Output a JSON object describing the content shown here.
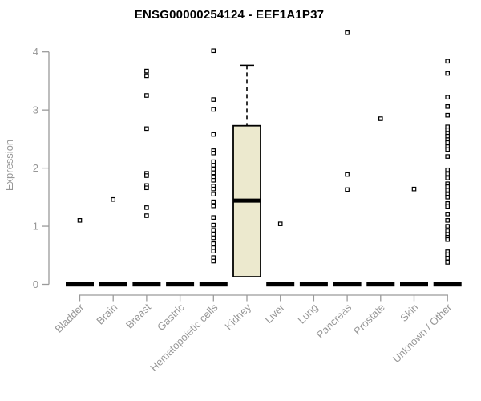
{
  "chart_data": {
    "type": "boxplot",
    "title": "ENSG00000254124 - EEF1A1P37",
    "ylabel": "Expression",
    "xlabel": "",
    "ylim": [
      0,
      4.4
    ],
    "yticks": [
      0,
      1,
      2,
      3,
      4
    ],
    "grid": false,
    "legend": "none",
    "x_tick_rotation_deg": 45,
    "categories": [
      "Bladder",
      "Brain",
      "Breast",
      "Gastric",
      "Hematopoietic cells",
      "Kidney",
      "Liver",
      "Lung",
      "Pancreas",
      "Prostate",
      "Skin",
      "Unknown / Other"
    ],
    "series": [
      {
        "category": "Bladder",
        "box": {
          "flat": true,
          "median": 0
        },
        "points": [
          1.1
        ]
      },
      {
        "category": "Brain",
        "box": {
          "flat": true,
          "median": 0
        },
        "points": [
          1.46
        ]
      },
      {
        "category": "Breast",
        "box": {
          "flat": true,
          "median": 0
        },
        "points": [
          3.67,
          3.59,
          3.25,
          2.68,
          1.91,
          1.87,
          1.7,
          1.66,
          1.32,
          1.18
        ]
      },
      {
        "category": "Gastric",
        "box": {
          "flat": true,
          "median": 0
        },
        "points": []
      },
      {
        "category": "Hematopoietic cells",
        "box": {
          "flat": true,
          "median": 0
        },
        "points": [
          4.02,
          3.18,
          3.01,
          2.58,
          2.3,
          2.26,
          2.11,
          2.05,
          1.98,
          1.92,
          1.85,
          1.79,
          1.69,
          1.64,
          1.55,
          1.42,
          1.35,
          1.15,
          1.02,
          0.93,
          0.86,
          0.8,
          0.7,
          0.63,
          0.57,
          0.46,
          0.4
        ]
      },
      {
        "category": "Kidney",
        "box": {
          "flat": false,
          "q1": 0.13,
          "median": 1.44,
          "q3": 2.73,
          "whisker_high": 3.77
        },
        "points": []
      },
      {
        "category": "Liver",
        "box": {
          "flat": true,
          "median": 0
        },
        "points": [
          1.04
        ]
      },
      {
        "category": "Lung",
        "box": {
          "flat": true,
          "median": 0
        },
        "points": []
      },
      {
        "category": "Pancreas",
        "box": {
          "flat": true,
          "median": 0
        },
        "points": [
          4.33,
          1.89,
          1.63
        ]
      },
      {
        "category": "Prostate",
        "box": {
          "flat": true,
          "median": 0
        },
        "points": [
          2.85
        ]
      },
      {
        "category": "Skin",
        "box": {
          "flat": true,
          "median": 0
        },
        "points": [
          1.64
        ]
      },
      {
        "category": "Unknown / Other",
        "box": {
          "flat": true,
          "median": 0
        },
        "points": [
          3.84,
          3.63,
          3.22,
          3.06,
          2.91,
          2.71,
          2.66,
          2.6,
          2.55,
          2.49,
          2.44,
          2.37,
          2.32,
          2.2,
          1.97,
          1.9,
          1.83,
          1.73,
          1.68,
          1.62,
          1.55,
          1.5,
          1.39,
          1.34,
          1.21,
          1.1,
          1.0,
          0.92,
          0.86,
          0.81,
          0.77,
          0.56,
          0.51,
          0.45,
          0.38
        ]
      }
    ],
    "colors": {
      "background": "#ffffff",
      "title": "#000000",
      "axis_line": "#9a9a9a",
      "tick_label": "#979797",
      "box_fill": "#ece9ce",
      "box_stroke": "#000000",
      "median": "#000000",
      "flat_bar": "#000000",
      "point_fill": "#ffffff",
      "point_stroke": "#000000"
    }
  }
}
